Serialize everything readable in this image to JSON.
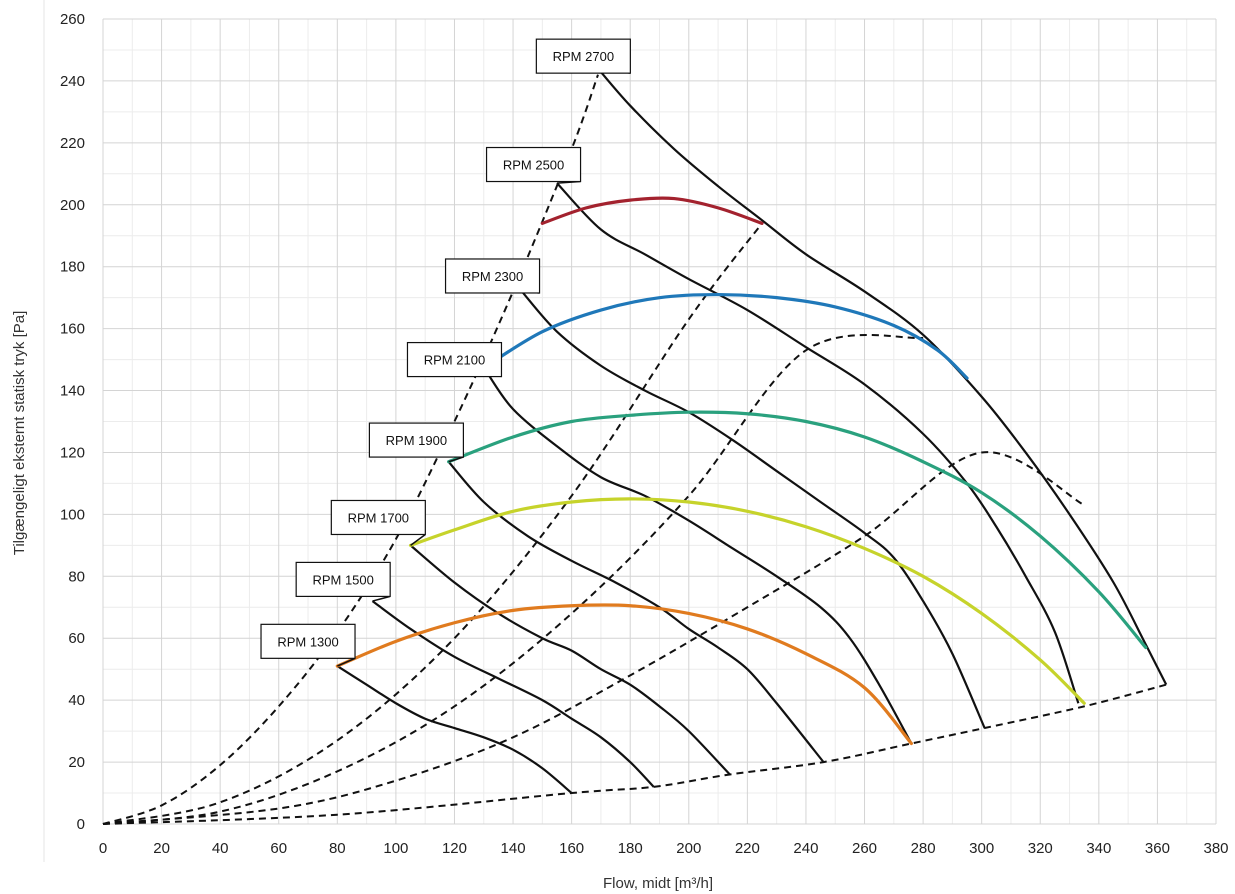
{
  "chart_data": {
    "type": "line",
    "xlabel": "Flow, midt [m³/h]",
    "ylabel": "Tilgængeligt eksternt statisk tryk [Pa]",
    "xlim": [
      0,
      380
    ],
    "ylim": [
      0,
      260
    ],
    "x_ticks": [
      0,
      20,
      40,
      60,
      80,
      100,
      120,
      140,
      160,
      180,
      200,
      220,
      240,
      260,
      280,
      300,
      320,
      340,
      360,
      380
    ],
    "y_ticks": [
      0,
      20,
      40,
      60,
      80,
      100,
      120,
      140,
      160,
      180,
      200,
      220,
      240,
      260
    ],
    "x_minor_step": 10,
    "y_minor_step": 10,
    "grid": true,
    "rpm_curves": [
      {
        "label": "RPM 1300",
        "points": [
          [
            80,
            51
          ],
          [
            90,
            45
          ],
          [
            100,
            39
          ],
          [
            110,
            34
          ],
          [
            120,
            31
          ],
          [
            130,
            28
          ],
          [
            140,
            24
          ],
          [
            150,
            18
          ],
          [
            160,
            10
          ]
        ]
      },
      {
        "label": "RPM 1500",
        "points": [
          [
            92,
            72
          ],
          [
            105,
            63
          ],
          [
            120,
            54
          ],
          [
            135,
            47
          ],
          [
            150,
            40
          ],
          [
            160,
            34
          ],
          [
            170,
            28
          ],
          [
            180,
            20
          ],
          [
            188,
            12
          ]
        ]
      },
      {
        "label": "RPM 1700",
        "points": [
          [
            105,
            90
          ],
          [
            120,
            78
          ],
          [
            135,
            68
          ],
          [
            150,
            60
          ],
          [
            160,
            56
          ],
          [
            170,
            50
          ],
          [
            180,
            45
          ],
          [
            190,
            38
          ],
          [
            200,
            30
          ],
          [
            214,
            16
          ]
        ]
      },
      {
        "label": "RPM 1900",
        "points": [
          [
            118,
            117
          ],
          [
            130,
            104
          ],
          [
            145,
            93
          ],
          [
            160,
            85
          ],
          [
            175,
            78
          ],
          [
            190,
            70
          ],
          [
            200,
            63
          ],
          [
            210,
            57
          ],
          [
            220,
            50
          ],
          [
            230,
            39
          ],
          [
            246,
            20
          ]
        ]
      },
      {
        "label": "RPM 2100",
        "points": [
          [
            131,
            146
          ],
          [
            140,
            134
          ],
          [
            155,
            122
          ],
          [
            170,
            112
          ],
          [
            185,
            106
          ],
          [
            200,
            98
          ],
          [
            215,
            89
          ],
          [
            230,
            80
          ],
          [
            245,
            70
          ],
          [
            255,
            60
          ],
          [
            265,
            45
          ],
          [
            276,
            26
          ]
        ]
      },
      {
        "label": "RPM 2300",
        "points": [
          [
            143,
            172
          ],
          [
            155,
            159
          ],
          [
            170,
            148
          ],
          [
            185,
            140
          ],
          [
            200,
            133
          ],
          [
            215,
            124
          ],
          [
            230,
            114
          ],
          [
            245,
            104
          ],
          [
            260,
            94
          ],
          [
            270,
            86
          ],
          [
            280,
            72
          ],
          [
            290,
            55
          ],
          [
            301,
            31
          ]
        ]
      },
      {
        "label": "RPM 2500",
        "points": [
          [
            155,
            207
          ],
          [
            170,
            192
          ],
          [
            185,
            184
          ],
          [
            200,
            176
          ],
          [
            220,
            166
          ],
          [
            240,
            154
          ],
          [
            260,
            142
          ],
          [
            280,
            126
          ],
          [
            295,
            110
          ],
          [
            305,
            96
          ],
          [
            315,
            80
          ],
          [
            325,
            62
          ],
          [
            333,
            39
          ]
        ]
      },
      {
        "label": "RPM 2700",
        "points": [
          [
            169,
            244
          ],
          [
            180,
            232
          ],
          [
            195,
            218
          ],
          [
            210,
            206
          ],
          [
            225,
            195
          ],
          [
            240,
            184
          ],
          [
            260,
            172
          ],
          [
            280,
            158
          ],
          [
            300,
            138
          ],
          [
            315,
            120
          ],
          [
            330,
            100
          ],
          [
            345,
            78
          ],
          [
            356,
            58
          ],
          [
            363,
            45
          ]
        ]
      }
    ],
    "label_anchors": [
      {
        "text": "RPM 1300",
        "x": 80,
        "y": 51,
        "box_center": [
          70,
          59
        ]
      },
      {
        "text": "RPM 1500",
        "x": 92,
        "y": 72,
        "box_center": [
          82,
          79
        ]
      },
      {
        "text": "RPM 1700",
        "x": 105,
        "y": 90,
        "box_center": [
          94,
          99
        ]
      },
      {
        "text": "RPM 1900",
        "x": 118,
        "y": 117,
        "box_center": [
          107,
          124
        ]
      },
      {
        "text": "RPM 2100",
        "x": 131,
        "y": 146,
        "box_center": [
          120,
          150
        ]
      },
      {
        "text": "RPM 2300",
        "x": 143,
        "y": 172,
        "box_center": [
          133,
          177
        ]
      },
      {
        "text": "RPM 2500",
        "x": 155,
        "y": 207,
        "box_center": [
          147,
          213
        ]
      },
      {
        "text": "RPM 2700",
        "x": 169,
        "y": 244,
        "box_center": [
          164,
          248
        ]
      }
    ],
    "dashed_curves": [
      {
        "points": [
          [
            0,
            0
          ],
          [
            20,
            6
          ],
          [
            40,
            19
          ],
          [
            60,
            38
          ],
          [
            80,
            62
          ],
          [
            100,
            92
          ],
          [
            120,
            130
          ],
          [
            140,
            172
          ],
          [
            160,
            218
          ],
          [
            169,
            242
          ]
        ]
      },
      {
        "points": [
          [
            0,
            0
          ],
          [
            40,
            7
          ],
          [
            80,
            27
          ],
          [
            120,
            60
          ],
          [
            160,
            106
          ],
          [
            200,
            163
          ],
          [
            225,
            194
          ]
        ]
      },
      {
        "points": [
          [
            0,
            0
          ],
          [
            40,
            4
          ],
          [
            80,
            17
          ],
          [
            120,
            38
          ],
          [
            160,
            68
          ],
          [
            200,
            106
          ],
          [
            240,
            153
          ],
          [
            280,
            157
          ]
        ]
      },
      {
        "points": [
          [
            0,
            0
          ],
          [
            60,
            5
          ],
          [
            100,
            14
          ],
          [
            140,
            28
          ],
          [
            180,
            48
          ],
          [
            220,
            70
          ],
          [
            260,
            93
          ],
          [
            300,
            120
          ],
          [
            335,
            103
          ]
        ]
      },
      {
        "points": [
          [
            0,
            0
          ],
          [
            80,
            3
          ],
          [
            160,
            10
          ],
          [
            188,
            12
          ],
          [
            214,
            16
          ],
          [
            246,
            20
          ],
          [
            276,
            26
          ],
          [
            301,
            31
          ],
          [
            335,
            38
          ],
          [
            363,
            45
          ]
        ]
      }
    ],
    "colored_curves": [
      {
        "color": "#e07b1f",
        "points": [
          [
            80,
            51
          ],
          [
            100,
            59
          ],
          [
            120,
            65
          ],
          [
            140,
            69
          ],
          [
            160,
            70.5
          ],
          [
            180,
            70.5
          ],
          [
            200,
            68
          ],
          [
            220,
            63
          ],
          [
            240,
            55
          ],
          [
            260,
            44
          ],
          [
            276,
            26
          ]
        ]
      },
      {
        "color": "#c6d32b",
        "points": [
          [
            105,
            90
          ],
          [
            120,
            95
          ],
          [
            140,
            101
          ],
          [
            160,
            104
          ],
          [
            180,
            105
          ],
          [
            200,
            104
          ],
          [
            220,
            101
          ],
          [
            240,
            96
          ],
          [
            260,
            89
          ],
          [
            280,
            80
          ],
          [
            300,
            68
          ],
          [
            320,
            53
          ],
          [
            335,
            39
          ]
        ]
      },
      {
        "color": "#2aa17e",
        "points": [
          [
            118,
            117
          ],
          [
            140,
            125
          ],
          [
            160,
            130
          ],
          [
            180,
            132
          ],
          [
            200,
            133
          ],
          [
            220,
            132.5
          ],
          [
            240,
            130
          ],
          [
            260,
            125
          ],
          [
            280,
            117
          ],
          [
            300,
            107
          ],
          [
            320,
            93
          ],
          [
            340,
            75
          ],
          [
            356,
            57
          ]
        ]
      },
      {
        "color": "#1f78b9",
        "points": [
          [
            131,
            148
          ],
          [
            150,
            159
          ],
          [
            170,
            166
          ],
          [
            190,
            170
          ],
          [
            210,
            171
          ],
          [
            230,
            170
          ],
          [
            250,
            167
          ],
          [
            270,
            161
          ],
          [
            285,
            153
          ],
          [
            295,
            144
          ]
        ]
      },
      {
        "color": "#a3222e",
        "points": [
          [
            150,
            194
          ],
          [
            165,
            199
          ],
          [
            180,
            201.5
          ],
          [
            195,
            202
          ],
          [
            210,
            199
          ],
          [
            225,
            194
          ]
        ]
      }
    ]
  }
}
